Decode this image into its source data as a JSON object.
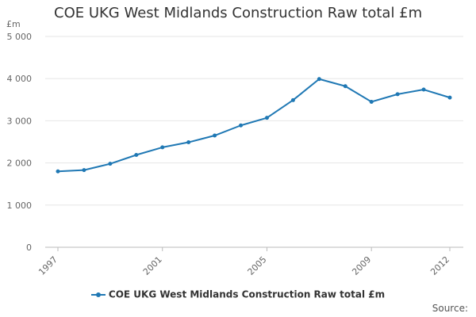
{
  "chart_data": {
    "type": "line",
    "title": "COE UKG West Midlands Construction Raw total £m",
    "ylabel": "£m",
    "xlabel": "",
    "x": [
      1997,
      1998,
      1999,
      2000,
      2001,
      2002,
      2003,
      2004,
      2005,
      2006,
      2007,
      2008,
      2009,
      2010,
      2011,
      2012
    ],
    "series": [
      {
        "name": "COE UKG West Midlands Construction Raw total £m",
        "values": [
          1800,
          1830,
          1980,
          2190,
          2370,
          2490,
          2650,
          2890,
          3070,
          3490,
          3990,
          3820,
          3450,
          3630,
          3740,
          3550
        ]
      }
    ],
    "xticks": [
      "1997",
      "2001",
      "2005",
      "2009",
      "2012"
    ],
    "yticks": [
      "0",
      "1 000",
      "2 000",
      "3 000",
      "4 000",
      "5 000"
    ],
    "ylim": [
      0,
      5000
    ],
    "grid": true,
    "legend": "bottom",
    "color": "#1f78b4"
  },
  "footer": {
    "source": "Source:"
  }
}
